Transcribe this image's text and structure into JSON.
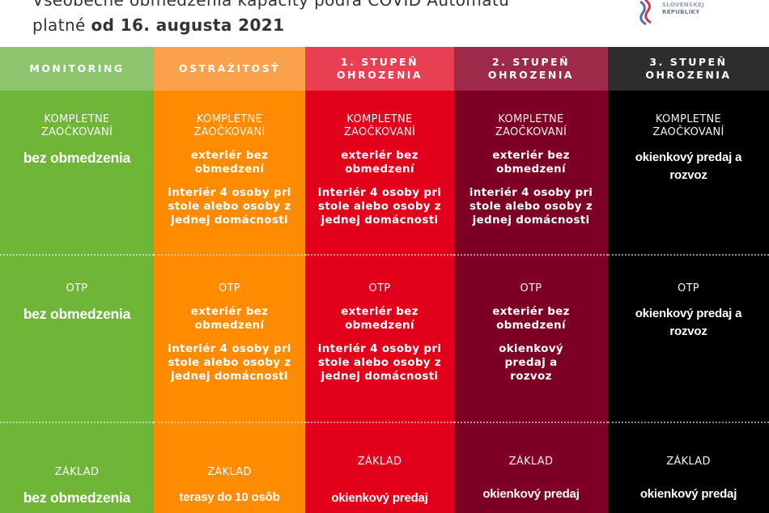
{
  "header": {
    "title_line1": "Všeobecné obmedzenia kapacity podľa COVID Automatu",
    "title_line2_prefix": "platné ",
    "title_line2_bold": "od 16. augusta 2021",
    "logo_text_line1": "SLOVENSKEJ",
    "logo_text_line2": "REPUBLIKY",
    "logo_icon": "ministry-emblem-icon"
  },
  "colors": {
    "monitoring_header": "#8dc56f",
    "monitoring_body": "#6fb537",
    "ostrazitost_header": "#f9a14b",
    "ostrazitost_body": "#ff8c00",
    "stupen1_header": "#e84052",
    "stupen1_body": "#e3001b",
    "stupen2_header": "#9e2a4a",
    "stupen2_body": "#7d0024",
    "stupen3_header": "#2d2d2d",
    "stupen3_body": "#000000"
  },
  "columns": [
    {
      "header": "MONITORING",
      "sections": [
        {
          "category": "KOMPLETNE ZAOČKOVANÍ",
          "items": [
            "bez obmedzenia"
          ]
        },
        {
          "category": "OTP",
          "items": [
            "bez obmedzenia"
          ]
        },
        {
          "category": "ZÁKLAD",
          "items": [
            "bez obmedzenia"
          ]
        }
      ]
    },
    {
      "header": "OSTRAŽITOSŤ",
      "sections": [
        {
          "category": "KOMPLETNE ZAOČKOVANÍ",
          "items": [
            "exteriér bez obmedzení",
            "interiér 4 osoby pri stole alebo osoby z jednej domácnosti"
          ]
        },
        {
          "category": "OTP",
          "items": [
            "exteriér bez obmedzení",
            "interiér 4 osoby pri stole alebo osoby z jednej domácnosti"
          ]
        },
        {
          "category": "ZÁKLAD",
          "items": [
            "terasy do 10 osôb"
          ]
        }
      ]
    },
    {
      "header": "1. STUPEŇ OHROZENIA",
      "sections": [
        {
          "category": "KOMPLETNE ZAOČKOVANÍ",
          "items": [
            "exteriér bez obmedzení",
            "interiér 4 osoby pri stole alebo osoby z jednej domácnosti"
          ]
        },
        {
          "category": "OTP",
          "items": [
            "exteriér bez obmedzení",
            "interiér 4 osoby pri stole alebo osoby z jednej domácnosti"
          ]
        },
        {
          "category": "ZÁKLAD",
          "items": [
            "okienkový predaj"
          ]
        }
      ]
    },
    {
      "header": "2. STUPEŇ OHROZENIA",
      "sections": [
        {
          "category": "KOMPLETNE ZAOČKOVANÍ",
          "items": [
            "exteriér bez obmedzení",
            "interiér 4 osoby pri stole alebo osoby z jednej domácnosti"
          ]
        },
        {
          "category": "OTP",
          "items": [
            "exteriér bez obmedzení",
            "okienkový predaj a rozvoz"
          ]
        },
        {
          "category": "ZÁKLAD",
          "items": [
            "okienkový predaj"
          ]
        }
      ]
    },
    {
      "header": "3. STUPEŇ OHROZENIA",
      "sections": [
        {
          "category": "KOMPLETNE ZAOČKOVANÍ",
          "items": [
            "okienkový predaj a rozvoz"
          ]
        },
        {
          "category": "OTP",
          "items": [
            "okienkový predaj a rozvoz"
          ]
        },
        {
          "category": "ZÁKLAD",
          "items": [
            "okienkový predaj"
          ]
        }
      ]
    }
  ]
}
